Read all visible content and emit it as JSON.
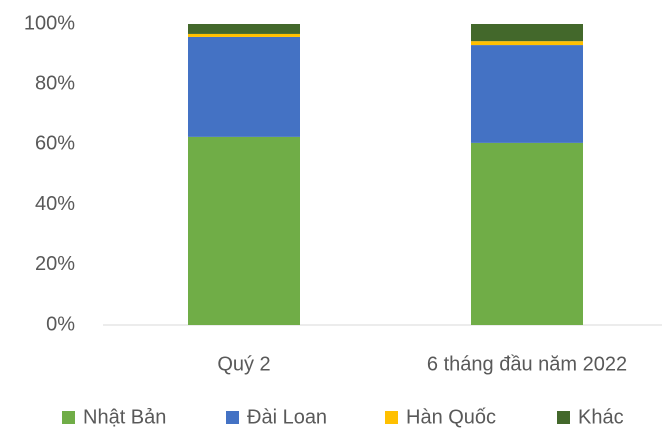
{
  "chart_data": {
    "type": "stacked_bar",
    "categories": [
      "Quý 2",
      "6 tháng đầu năm 2022"
    ],
    "series": [
      {
        "name": "Nhật Bản",
        "color": "#70ad47",
        "values": [
          62.5,
          60.5
        ]
      },
      {
        "name": "Đài Loan",
        "color": "#4472c4",
        "values": [
          33.2,
          32.5
        ]
      },
      {
        "name": "Hàn Quốc",
        "color": "#ffc000",
        "values": [
          1.0,
          1.3
        ]
      },
      {
        "name": "Khác",
        "color": "#43682b",
        "values": [
          3.3,
          5.7
        ]
      }
    ],
    "ylim": [
      0,
      100
    ],
    "yticks": [
      {
        "value": 0,
        "label": "0%"
      },
      {
        "value": 20,
        "label": "20%"
      },
      {
        "value": 40,
        "label": "40%"
      },
      {
        "value": 60,
        "label": "60%"
      },
      {
        "value": 80,
        "label": "80%"
      },
      {
        "value": 100,
        "label": "100%"
      }
    ],
    "grid": false,
    "legend": "bottom"
  }
}
